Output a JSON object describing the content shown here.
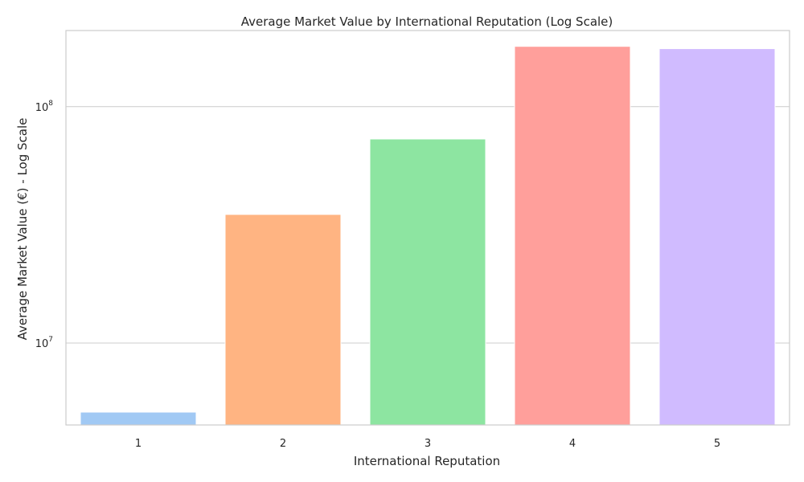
{
  "chart_data": {
    "type": "bar",
    "title": "Average Market Value by International Reputation (Log Scale)",
    "xlabel": "International Reputation",
    "ylabel": "Average Market Value (€) - Log Scale",
    "categories": [
      "1",
      "2",
      "3",
      "4",
      "5"
    ],
    "values": [
      5100000,
      35000000,
      73000000,
      180000000,
      176000000
    ],
    "colors": [
      "#a1c9f4",
      "#ffb482",
      "#8de5a1",
      "#ff9f9b",
      "#d0bbff"
    ],
    "y_scale": "log",
    "ylim": [
      4500000,
      210000000
    ],
    "y_ticks": [
      {
        "value": 10000000,
        "base": "10",
        "exponent": "7"
      },
      {
        "value": 100000000,
        "base": "10",
        "exponent": "8"
      }
    ],
    "grid": true,
    "legend": "none"
  }
}
